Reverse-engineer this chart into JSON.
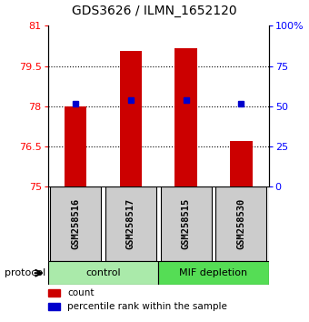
{
  "title": "GDS3626 / ILMN_1652120",
  "samples": [
    "GSM258516",
    "GSM258517",
    "GSM258515",
    "GSM258530"
  ],
  "bar_values": [
    78.0,
    80.05,
    80.15,
    76.7
  ],
  "bar_base": 75.0,
  "percentile_values": [
    78.1,
    78.22,
    78.22,
    78.1
  ],
  "groups": [
    {
      "label": "control",
      "indices": [
        0,
        1
      ],
      "color": "#aaeaaa"
    },
    {
      "label": "MIF depletion",
      "indices": [
        2,
        3
      ],
      "color": "#55dd55"
    }
  ],
  "ylim_left": [
    75,
    81
  ],
  "yticks_left": [
    75,
    76.5,
    78,
    79.5,
    81
  ],
  "ytick_labels_left": [
    "75",
    "76.5",
    "78",
    "79.5",
    "81"
  ],
  "ylim_right": [
    0,
    100
  ],
  "yticks_right": [
    0,
    25,
    50,
    75,
    100
  ],
  "ytick_labels_right": [
    "0",
    "25",
    "50",
    "75",
    "100%"
  ],
  "bar_color": "#cc0000",
  "percentile_color": "#0000cc",
  "sample_box_color": "#cccccc",
  "protocol_label": "protocol",
  "grid_lines": [
    79.5,
    78.0,
    76.5
  ],
  "legend_items": [
    {
      "color": "#cc0000",
      "label": "count"
    },
    {
      "color": "#0000cc",
      "label": "percentile rank within the sample"
    }
  ]
}
